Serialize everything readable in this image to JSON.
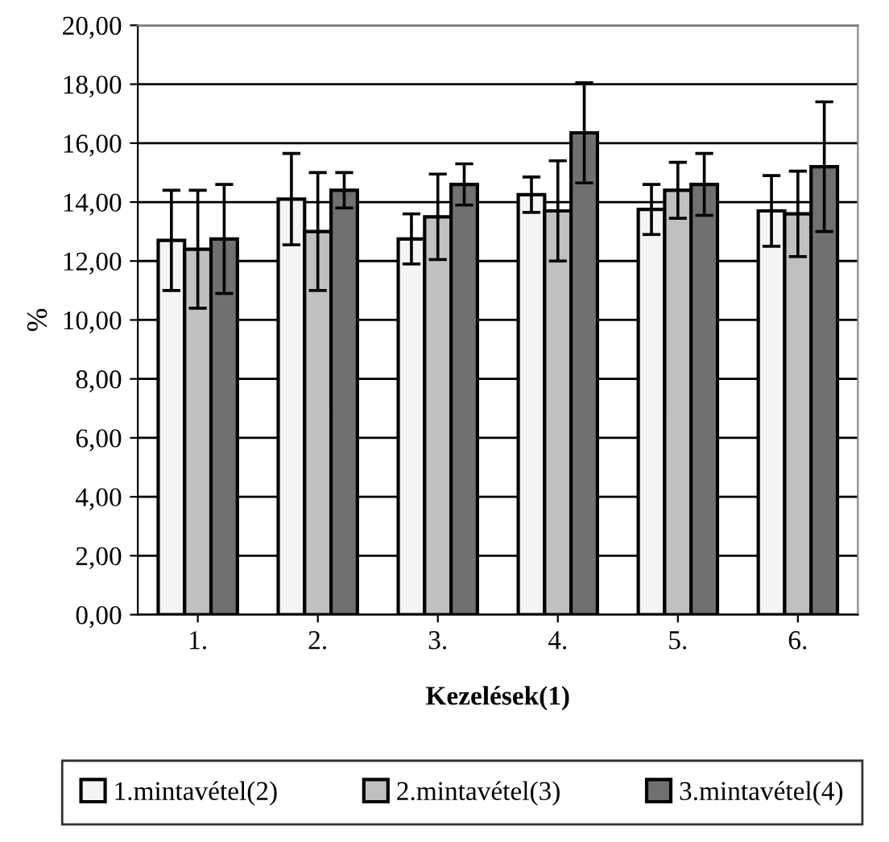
{
  "chart_data": {
    "type": "bar",
    "xlabel": "Kezelések(1)",
    "ylabel": "%",
    "categories": [
      "1.",
      "2.",
      "3.",
      "4.",
      "5.",
      "6."
    ],
    "series": [
      {
        "name": "1.mintavétel(2)",
        "color": "#f4f4f4",
        "values": [
          12.7,
          14.1,
          12.75,
          14.25,
          13.75,
          13.7
        ],
        "errors": [
          1.7,
          1.55,
          0.85,
          0.6,
          0.85,
          1.2
        ]
      },
      {
        "name": "2.mintavétel(3)",
        "color": "#c0c0c0",
        "values": [
          12.4,
          13.0,
          13.5,
          13.7,
          14.4,
          13.6
        ],
        "errors": [
          2.0,
          2.0,
          1.45,
          1.7,
          0.95,
          1.45
        ]
      },
      {
        "name": "3.mintavétel(4)",
        "color": "#707070",
        "values": [
          12.75,
          14.4,
          14.6,
          16.35,
          14.6,
          15.2
        ],
        "errors": [
          1.85,
          0.6,
          0.7,
          1.7,
          1.05,
          2.2
        ]
      }
    ],
    "ylim": [
      0,
      20
    ],
    "yticks": [
      {
        "value": 0,
        "label": "0,00"
      },
      {
        "value": 2,
        "label": "2,00"
      },
      {
        "value": 4,
        "label": "4,00"
      },
      {
        "value": 6,
        "label": "6,00"
      },
      {
        "value": 8,
        "label": "8,00"
      },
      {
        "value": 10,
        "label": "10,00"
      },
      {
        "value": 12,
        "label": "12,00"
      },
      {
        "value": 14,
        "label": "14,00"
      },
      {
        "value": 16,
        "label": "16,00"
      },
      {
        "value": 18,
        "label": "18,00"
      },
      {
        "value": 20,
        "label": "20,00"
      }
    ],
    "grid": "y",
    "legend": "bottom"
  }
}
